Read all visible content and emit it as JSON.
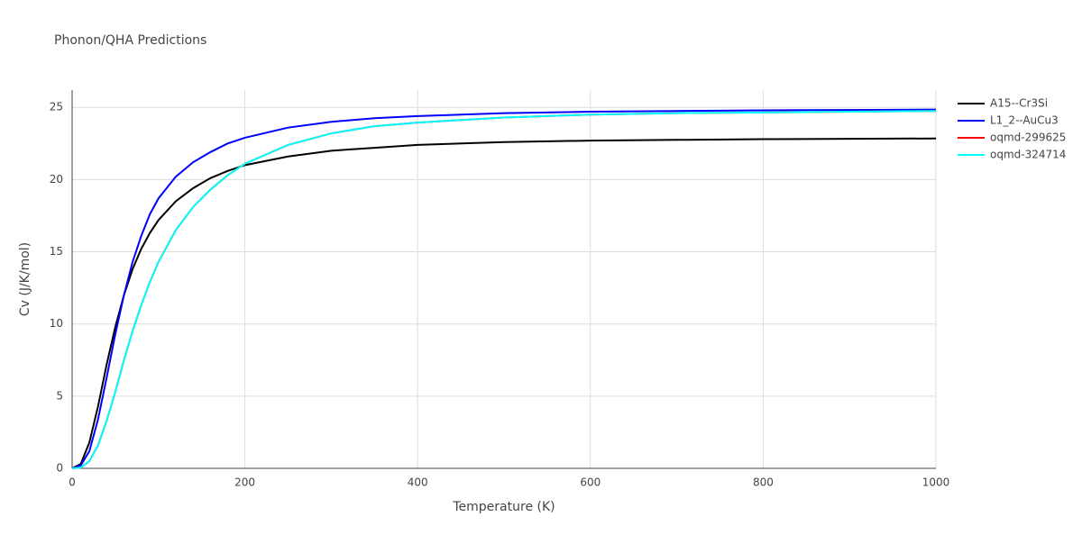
{
  "chart_data": {
    "type": "line",
    "title": "Phonon/QHA Predictions",
    "x_label": "Temperature (K)",
    "y_label": "Cv (J/K/mol)",
    "x": [
      0,
      10,
      20,
      30,
      40,
      50,
      60,
      70,
      80,
      90,
      100,
      120,
      140,
      160,
      180,
      200,
      250,
      300,
      350,
      400,
      500,
      600,
      700,
      800,
      900,
      1000
    ],
    "series": [
      {
        "name": "A15--Cr3Si",
        "color": "#000000",
        "values": [
          0,
          0.3,
          1.8,
          4.3,
          7.2,
          9.8,
          12.0,
          13.8,
          15.2,
          16.3,
          17.2,
          18.5,
          19.4,
          20.1,
          20.6,
          21.0,
          21.6,
          22.0,
          22.2,
          22.4,
          22.6,
          22.7,
          22.75,
          22.8,
          22.82,
          22.85
        ]
      },
      {
        "name": "L1_2--AuCu3",
        "color": "#0000ff",
        "values": [
          0,
          0.2,
          1.2,
          3.4,
          6.3,
          9.3,
          12.0,
          14.3,
          16.1,
          17.6,
          18.7,
          20.2,
          21.2,
          21.9,
          22.5,
          22.9,
          23.6,
          24.0,
          24.25,
          24.4,
          24.6,
          24.7,
          24.75,
          24.8,
          24.82,
          24.85
        ]
      },
      {
        "name": "oqmd-299625",
        "color": "#ff0000",
        "values": [
          0,
          0.05,
          0.5,
          1.6,
          3.3,
          5.3,
          7.5,
          9.5,
          11.3,
          12.9,
          14.3,
          16.5,
          18.1,
          19.3,
          20.3,
          21.1,
          22.4,
          23.2,
          23.7,
          23.95,
          24.3,
          24.5,
          24.6,
          24.65,
          24.7,
          24.75
        ]
      },
      {
        "name": "oqmd-324714",
        "color": "#00ffff",
        "values": [
          0,
          0.05,
          0.5,
          1.6,
          3.3,
          5.3,
          7.5,
          9.5,
          11.3,
          12.9,
          14.3,
          16.5,
          18.1,
          19.3,
          20.3,
          21.1,
          22.4,
          23.2,
          23.7,
          23.95,
          24.3,
          24.5,
          24.6,
          24.65,
          24.7,
          24.75
        ]
      }
    ],
    "xlim": [
      0,
      1000
    ],
    "xticks": [
      0,
      200,
      400,
      600,
      800,
      1000
    ],
    "ylim": [
      0,
      26.2
    ],
    "yticks": [
      0,
      5,
      10,
      15,
      20,
      25
    ],
    "grid": true,
    "legend": "right"
  }
}
